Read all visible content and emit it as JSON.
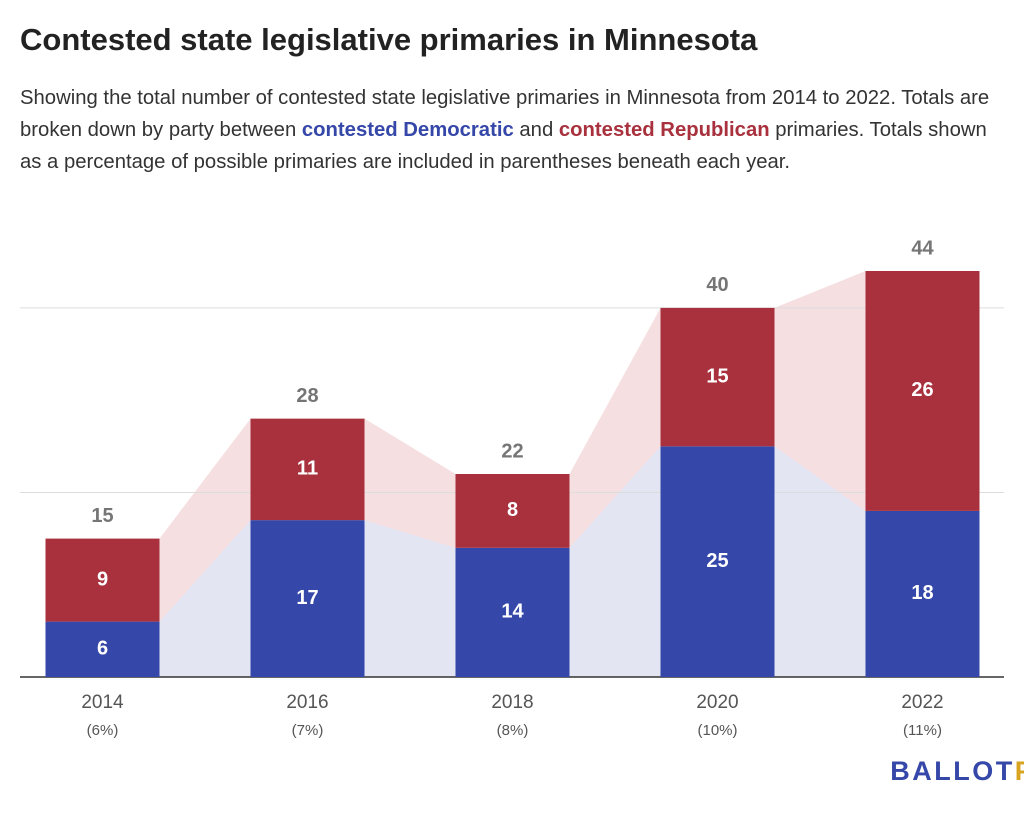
{
  "chart_data": {
    "type": "bar",
    "stacked": true,
    "title": "Contested state legislative primaries in Minnesota",
    "subtitle_parts": [
      "Showing the total number of contested state legislative primaries in Minnesota from 2014 to 2022. Totals are broken down by party between ",
      " and ",
      " primaries. Totals shown as a percentage of possible primaries are included in parentheses beneath each year."
    ],
    "categories": [
      "2014",
      "2016",
      "2018",
      "2020",
      "2022"
    ],
    "category_notes": [
      "(6%)",
      "(7%)",
      "(8%)",
      "(10%)",
      "(11%)"
    ],
    "series": [
      {
        "name": "contested Democratic",
        "color": "#3547a8",
        "area_color": "#e3e5f3",
        "values": [
          6,
          17,
          14,
          25,
          18
        ]
      },
      {
        "name": "contested Republican",
        "color": "#a8313d",
        "area_color": "#f6dfe1",
        "values": [
          9,
          11,
          8,
          15,
          26
        ]
      }
    ],
    "totals": [
      15,
      28,
      22,
      40,
      44
    ],
    "ylim": [
      0,
      44
    ],
    "yticks": [
      0,
      20,
      40
    ],
    "grid": true,
    "logo": [
      "BALLOT",
      "PEDIA"
    ],
    "logo_colors": [
      "#3547a8",
      "#d9a521"
    ]
  }
}
